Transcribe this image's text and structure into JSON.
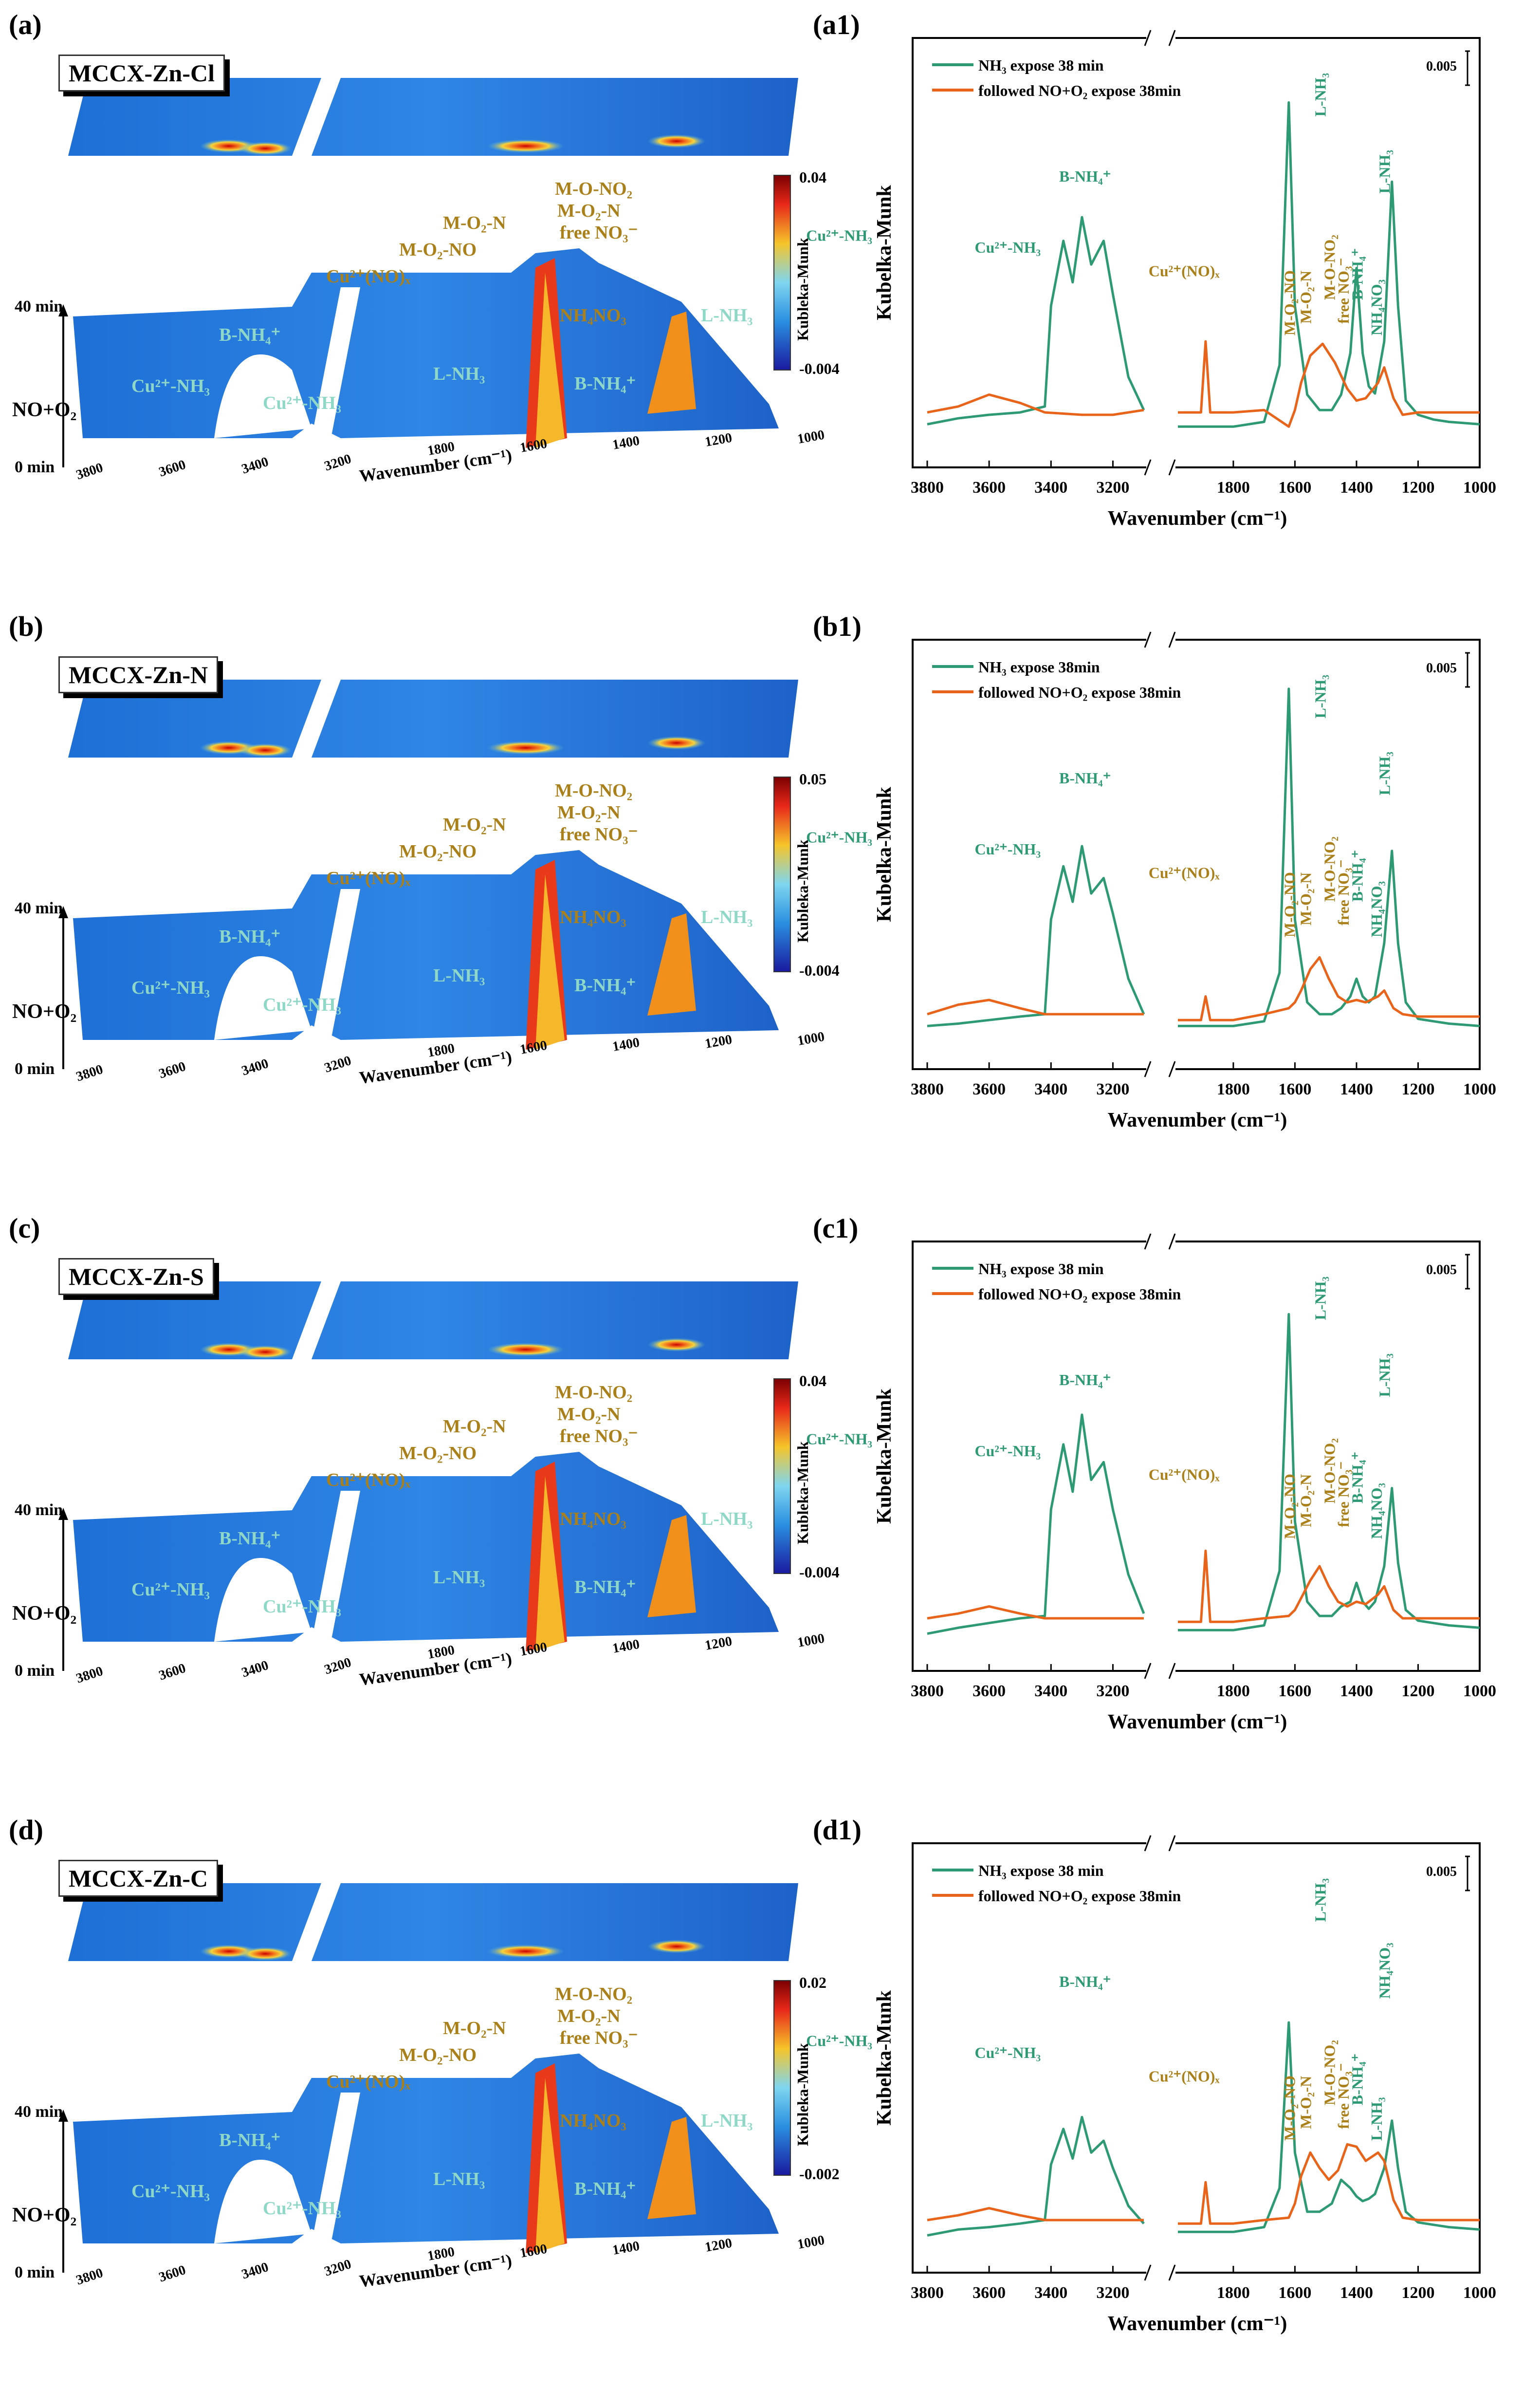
{
  "panels": [
    {
      "label_3d": "(a)",
      "label_2d": "(a1)",
      "sample": "MCCX-Zn-Cl",
      "colorbar_max": "0.04",
      "colorbar_min": "-0.004",
      "scale_bar": "0.005",
      "legend": [
        "NH₃ expose 38 min",
        "followed NO+O₂ expose 38min"
      ],
      "peaks_2d": [
        "B-NH₄⁺",
        "Cu²⁺-NH₃",
        "Cu²⁺-NH₃",
        "Cu²⁺(NO)ₓ",
        "L-NH₃",
        "M-O₂-NO",
        "M-O₂-N",
        "M-O-NO₂",
        "free NO₃⁻",
        "B-NH₄⁺",
        "L-NH₃",
        "NH₄NO₃"
      ],
      "labels_3d": [
        "Cu²⁺(NO)ₓ",
        "M-O₂-N",
        "M-O₂-NO",
        "M-O-NO₂",
        "M-O₂-N",
        "free NO₃⁻",
        "B-NH₄⁺",
        "Cu²⁺-NH₃",
        "Cu²⁺-NH₃",
        "L-NH₃",
        "NH₄NO₃",
        "L-NH₃",
        "B-NH₄⁺"
      ]
    },
    {
      "label_3d": "(b)",
      "label_2d": "(b1)",
      "sample": "MCCX-Zn-N",
      "colorbar_max": "0.05",
      "colorbar_min": "-0.004",
      "scale_bar": "0.005",
      "legend": [
        "NH₃ expose 38min",
        "followed NO+O₂ expose 38min"
      ],
      "peaks_2d": [
        "B-NH₄⁺",
        "Cu²⁺-NH₃",
        "Cu²⁺-NH₃",
        "Cu²⁺(NO)ₓ",
        "L-NH₃",
        "M-O₂-NO",
        "M-O₂-N",
        "M-O-NO₂",
        "free NO₃⁻",
        "B-NH₄⁺",
        "L-NH₃",
        "NH₄NO₃"
      ],
      "labels_3d": [
        "Cu²⁺(NO)ₓ",
        "M-O₂-N",
        "M-O₂-NO",
        "M-O-NO₂",
        "M-O₂-N",
        "free NO₃⁻",
        "B-NH₄⁺",
        "Cu²⁺-NH₃",
        "Cu²⁺-NH₃",
        "L-NH₃",
        "NH₄NO₃",
        "L-NH₃",
        "B-NH₄⁺"
      ]
    },
    {
      "label_3d": "(c)",
      "label_2d": "(c1)",
      "sample": "MCCX-Zn-S",
      "colorbar_max": "0.04",
      "colorbar_min": "-0.004",
      "scale_bar": "0.005",
      "legend": [
        "NH₃ expose 38 min",
        "followed NO+O₂ expose 38min"
      ],
      "peaks_2d": [
        "B-NH₄⁺",
        "Cu²⁺-NH₃",
        "Cu²⁺-NH₃",
        "Cu²⁺(NO)ₓ",
        "L-NH₃",
        "M-O₂-NO",
        "M-O₂-N",
        "M-O-NO₂",
        "free NO₃⁻",
        "B-NH₄⁺",
        "L-NH₃",
        "NH₄NO₃"
      ],
      "labels_3d": [
        "Cu²⁺(NO)ₓ",
        "M-O₂-N",
        "M-O₂-NO",
        "M-O-NO₂",
        "M-O₂-N",
        "free NO₃⁻",
        "B-NH₄⁺",
        "Cu²⁺-NH₃",
        "Cu²⁺-NH₃",
        "L-NH₃",
        "NH₄NO₃",
        "L-NH₃",
        "B-NH₄⁺"
      ]
    },
    {
      "label_3d": "(d)",
      "label_2d": "(d1)",
      "sample": "MCCX-Zn-C",
      "colorbar_max": "0.02",
      "colorbar_min": "-0.002",
      "scale_bar": "0.005",
      "legend": [
        "NH₃ expose 38 min",
        "followed NO+O₂ expose 38min"
      ],
      "peaks_2d": [
        "B-NH₄⁺",
        "Cu²⁺-NH₃",
        "Cu²⁺-NH₃",
        "Cu²⁺(NO)ₓ",
        "L-NH₃",
        "M-O₂-NO",
        "M-O₂-N",
        "M-O-NO₂",
        "free NO₃⁻",
        "B-NH₄⁺",
        "NH₄NO₃",
        "L-NH₃"
      ],
      "labels_3d": [
        "Cu²⁺(NO)ₓ",
        "M-O₂-N",
        "M-O₂-NO",
        "M-O-NO₂",
        "M-O₂-N",
        "free NO₃⁻",
        "B-NH₄⁺",
        "Cu²⁺-NH₃",
        "Cu²⁺-NH₃",
        "L-NH₃",
        "NH₄NO₃",
        "L-NH₃",
        "B-NH₄⁺"
      ]
    }
  ],
  "axis3d": {
    "time_top": "40 min",
    "time_bottom": "0 min",
    "gas": "NO+O₂",
    "colorbar_title": "Kubleka-Munk",
    "ticks_high": [
      "3800",
      "3600",
      "3400",
      "3200"
    ],
    "ticks_low": [
      "1800",
      "1600",
      "1400",
      "1200",
      "1000"
    ],
    "xlabel": "Wavenumber (cm⁻¹)"
  },
  "axis2d": {
    "ylabel": "Kubelka-Munk",
    "xlabel": "Wavenumber (cm⁻¹)",
    "ticks_high": [
      "3800",
      "3600",
      "3400",
      "3200"
    ],
    "ticks_low": [
      "1800",
      "1600",
      "1400",
      "1200",
      "1000"
    ]
  },
  "colors": {
    "nh3": "#2e9a73",
    "no_o2": "#e8641a",
    "label_green": "#2e9a73",
    "label_gold": "#a9801a"
  },
  "chart_data": [
    {
      "type": "line",
      "title": "(a1) MCCX-Zn-Cl",
      "xlabel": "Wavenumber (cm⁻¹)",
      "ylabel": "Kubelka-Munk",
      "xlim": [
        3800,
        1000
      ],
      "x_break": [
        3100,
        1980
      ],
      "series": [
        {
          "name": "NH₃ expose 38 min",
          "x": [
            3800,
            3700,
            3600,
            3500,
            3420,
            3400,
            3360,
            3330,
            3300,
            3270,
            3230,
            3200,
            3150,
            3100,
            1980,
            1900,
            1800,
            1700,
            1650,
            1620,
            1600,
            1560,
            1520,
            1480,
            1450,
            1420,
            1400,
            1380,
            1360,
            1340,
            1310,
            1285,
            1265,
            1240,
            1200,
            1150,
            1100,
            1000
          ],
          "y": [
            0.002,
            0.0025,
            0.0028,
            0.003,
            0.0035,
            0.012,
            0.0175,
            0.014,
            0.0195,
            0.0155,
            0.0175,
            0.013,
            0.006,
            0.0032,
            0.0018,
            0.0018,
            0.0018,
            0.0022,
            0.007,
            0.0292,
            0.012,
            0.0045,
            0.0032,
            0.0032,
            0.0045,
            0.008,
            0.0152,
            0.008,
            0.0052,
            0.0046,
            0.009,
            0.0225,
            0.012,
            0.004,
            0.0028,
            0.0024,
            0.0022,
            0.002
          ]
        },
        {
          "name": "followed NO+O₂ expose 38min",
          "x": [
            3800,
            3700,
            3600,
            3500,
            3420,
            3300,
            3200,
            3100,
            1980,
            1905,
            1890,
            1875,
            1800,
            1700,
            1620,
            1600,
            1580,
            1550,
            1510,
            1470,
            1430,
            1400,
            1370,
            1330,
            1310,
            1280,
            1250,
            1200,
            1100,
            1000
          ],
          "y": [
            0.003,
            0.0035,
            0.0045,
            0.0038,
            0.003,
            0.0028,
            0.0028,
            0.0032,
            0.003,
            0.003,
            0.009,
            0.003,
            0.003,
            0.0032,
            0.0018,
            0.0032,
            0.0055,
            0.0078,
            0.0088,
            0.0072,
            0.005,
            0.004,
            0.0042,
            0.0055,
            0.0068,
            0.0042,
            0.0028,
            0.003,
            0.003,
            0.003
          ]
        }
      ]
    },
    {
      "type": "line",
      "title": "(b1) MCCX-Zn-N",
      "xlabel": "Wavenumber (cm⁻¹)",
      "ylabel": "Kubelka-Munk",
      "xlim": [
        3800,
        1000
      ],
      "x_break": [
        3100,
        1980
      ],
      "series": [
        {
          "name": "NH₃ expose 38min",
          "x": [
            3800,
            3700,
            3600,
            3500,
            3420,
            3400,
            3360,
            3330,
            3300,
            3270,
            3230,
            3200,
            3150,
            3100,
            1980,
            1900,
            1800,
            1700,
            1650,
            1620,
            1600,
            1560,
            1520,
            1480,
            1450,
            1420,
            1400,
            1380,
            1360,
            1340,
            1310,
            1285,
            1265,
            1240,
            1200,
            1150,
            1100,
            1000
          ],
          "y": [
            0.002,
            0.0022,
            0.0025,
            0.0028,
            0.003,
            0.011,
            0.0155,
            0.0125,
            0.0172,
            0.0132,
            0.0145,
            0.0115,
            0.006,
            0.003,
            0.002,
            0.002,
            0.002,
            0.0024,
            0.0065,
            0.0305,
            0.011,
            0.004,
            0.003,
            0.003,
            0.0035,
            0.0045,
            0.006,
            0.0045,
            0.004,
            0.0045,
            0.009,
            0.0168,
            0.009,
            0.004,
            0.0026,
            0.0024,
            0.0022,
            0.002
          ]
        },
        {
          "name": "followed NO+O₂ expose 38min",
          "x": [
            3800,
            3700,
            3600,
            3500,
            3420,
            3300,
            3200,
            3100,
            1980,
            1905,
            1890,
            1875,
            1800,
            1700,
            1620,
            1600,
            1580,
            1550,
            1520,
            1490,
            1460,
            1430,
            1400,
            1370,
            1330,
            1310,
            1280,
            1250,
            1200,
            1100,
            1000
          ],
          "y": [
            0.003,
            0.0038,
            0.0042,
            0.0035,
            0.003,
            0.003,
            0.003,
            0.003,
            0.0025,
            0.0025,
            0.0045,
            0.0025,
            0.0025,
            0.003,
            0.0035,
            0.004,
            0.005,
            0.0068,
            0.0078,
            0.006,
            0.0045,
            0.004,
            0.0042,
            0.004,
            0.0045,
            0.005,
            0.0035,
            0.003,
            0.0028,
            0.0028,
            0.0028
          ]
        }
      ]
    },
    {
      "type": "line",
      "title": "(c1) MCCX-Zn-S",
      "xlabel": "Wavenumber (cm⁻¹)",
      "ylabel": "Kubelka-Munk",
      "xlim": [
        3800,
        1000
      ],
      "x_break": [
        3100,
        1980
      ],
      "series": [
        {
          "name": "NH₃ expose 38 min",
          "x": [
            3800,
            3700,
            3600,
            3500,
            3420,
            3400,
            3360,
            3330,
            3300,
            3270,
            3230,
            3200,
            3150,
            3100,
            1980,
            1900,
            1800,
            1700,
            1650,
            1620,
            1600,
            1560,
            1520,
            1480,
            1450,
            1420,
            1400,
            1380,
            1360,
            1340,
            1310,
            1285,
            1265,
            1240,
            1200,
            1150,
            1100,
            1000
          ],
          "y": [
            0.0015,
            0.002,
            0.0024,
            0.0028,
            0.003,
            0.012,
            0.0175,
            0.0135,
            0.02,
            0.0145,
            0.016,
            0.012,
            0.0065,
            0.0032,
            0.0018,
            0.0018,
            0.0018,
            0.0022,
            0.0068,
            0.0285,
            0.011,
            0.0042,
            0.003,
            0.003,
            0.0038,
            0.0042,
            0.0058,
            0.0042,
            0.0036,
            0.0042,
            0.0072,
            0.0138,
            0.0075,
            0.0035,
            0.0026,
            0.0024,
            0.0022,
            0.002
          ]
        },
        {
          "name": "followed NO+O₂ expose 38min",
          "x": [
            3800,
            3700,
            3600,
            3500,
            3420,
            3300,
            3200,
            3100,
            1980,
            1905,
            1890,
            1875,
            1800,
            1700,
            1620,
            1600,
            1580,
            1550,
            1520,
            1490,
            1460,
            1430,
            1400,
            1370,
            1330,
            1310,
            1280,
            1250,
            1200,
            1100,
            1000
          ],
          "y": [
            0.0028,
            0.0032,
            0.0038,
            0.0032,
            0.0028,
            0.0028,
            0.0028,
            0.0028,
            0.0025,
            0.0025,
            0.0085,
            0.0025,
            0.0025,
            0.0028,
            0.003,
            0.0035,
            0.0045,
            0.006,
            0.0072,
            0.0055,
            0.0042,
            0.0038,
            0.0042,
            0.004,
            0.0048,
            0.0055,
            0.0035,
            0.0028,
            0.0028,
            0.0028,
            0.0028
          ]
        }
      ]
    },
    {
      "type": "line",
      "title": "(d1) MCCX-Zn-C",
      "xlabel": "Wavenumber (cm⁻¹)",
      "ylabel": "Kubelka-Munk",
      "xlim": [
        3800,
        1000
      ],
      "x_break": [
        3100,
        1980
      ],
      "series": [
        {
          "name": "NH₃ expose 38 min",
          "x": [
            3800,
            3700,
            3600,
            3500,
            3420,
            3400,
            3360,
            3330,
            3300,
            3270,
            3230,
            3200,
            3150,
            3100,
            1980,
            1900,
            1800,
            1700,
            1650,
            1620,
            1600,
            1560,
            1520,
            1480,
            1450,
            1420,
            1400,
            1380,
            1360,
            1340,
            1310,
            1285,
            1265,
            1240,
            1200,
            1150,
            1100,
            1000
          ],
          "y": [
            0.0015,
            0.002,
            0.0022,
            0.0025,
            0.0028,
            0.0075,
            0.0105,
            0.008,
            0.0115,
            0.0085,
            0.0095,
            0.0072,
            0.004,
            0.0025,
            0.0018,
            0.0018,
            0.0018,
            0.0022,
            0.0055,
            0.0195,
            0.0085,
            0.0035,
            0.0035,
            0.0042,
            0.0062,
            0.0055,
            0.0048,
            0.0044,
            0.0046,
            0.005,
            0.0072,
            0.0112,
            0.0072,
            0.0035,
            0.0026,
            0.0024,
            0.0022,
            0.002
          ]
        },
        {
          "name": "followed NO+O₂ expose 38min",
          "x": [
            3800,
            3700,
            3600,
            3500,
            3420,
            3300,
            3200,
            3100,
            1980,
            1905,
            1890,
            1875,
            1800,
            1700,
            1620,
            1600,
            1580,
            1550,
            1520,
            1490,
            1460,
            1430,
            1400,
            1370,
            1330,
            1310,
            1280,
            1250,
            1200,
            1100,
            1000
          ],
          "y": [
            0.0028,
            0.0032,
            0.0038,
            0.0032,
            0.0028,
            0.0028,
            0.0028,
            0.0028,
            0.0025,
            0.0025,
            0.006,
            0.0025,
            0.0025,
            0.0028,
            0.003,
            0.0042,
            0.0065,
            0.0085,
            0.0072,
            0.0062,
            0.007,
            0.0092,
            0.009,
            0.0078,
            0.0085,
            0.0078,
            0.0045,
            0.003,
            0.0028,
            0.0028,
            0.0028
          ]
        }
      ]
    }
  ]
}
